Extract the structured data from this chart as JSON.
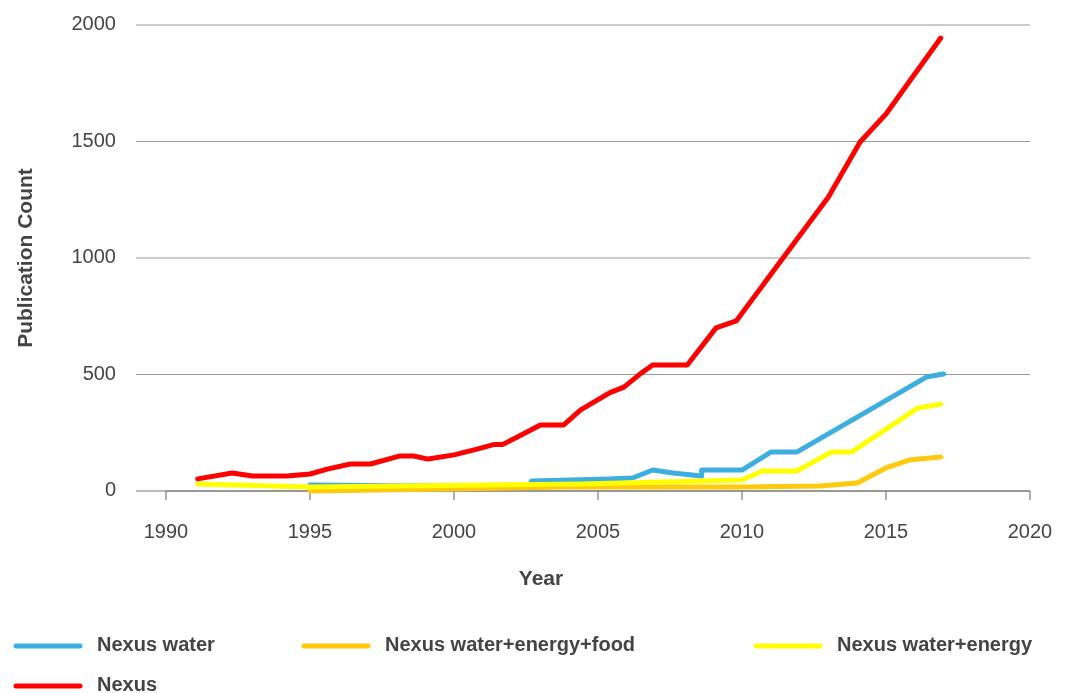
{
  "chart_data": {
    "type": "line",
    "xlabel": "Year",
    "ylabel": "Publication Count",
    "xlim": [
      1990,
      2020
    ],
    "xticks": [
      1990,
      1995,
      2000,
      2005,
      2010,
      2015,
      2020
    ],
    "ylim": [
      0,
      2000
    ],
    "yticks": [
      0,
      500,
      1000,
      1500,
      2000
    ],
    "grid": "y",
    "legend": "bottom",
    "marker": "none",
    "line_style": "solid",
    "series": [
      {
        "name": "Nexus water",
        "color": "#3daee0",
        "x": [
          1995,
          2002.6,
          2002.7,
          2005.4,
          2006.2,
          2006.9,
          2007.6,
          2008.6,
          2008.6,
          2010,
          2011,
          2011.9,
          2016.4,
          2017
        ],
        "values": [
          26,
          18,
          43,
          52,
          56,
          90,
          77,
          64,
          90,
          90,
          167,
          167,
          489,
          502
        ]
      },
      {
        "name": "Nexus water+energy+food",
        "color": "#ffc90e",
        "x": [
          1995,
          2004,
          2010,
          2012.7,
          2014,
          2015,
          2015.8,
          2016.9
        ],
        "values": [
          0,
          17,
          17,
          21,
          34,
          99,
          133,
          146
        ]
      },
      {
        "name": "Nexus water+energy",
        "color": "#ffff00",
        "x": [
          1991.1,
          1995,
          2004.4,
          2010,
          2010.7,
          2011.9,
          2013.1,
          2013.8,
          2016.1,
          2016.9
        ],
        "values": [
          30,
          17,
          30,
          47,
          86,
          86,
          167,
          167,
          356,
          373
        ]
      },
      {
        "name": "Nexus",
        "color": "#ff0000",
        "x": [
          1991.1,
          1992.3,
          1993,
          1994.2,
          1995,
          1995.6,
          1996.4,
          1997.1,
          1998.1,
          1998.6,
          1999.1,
          2000,
          2000.8,
          2001.4,
          2001.7,
          2002.2,
          2003,
          2003.8,
          2004.4,
          2005.4,
          2005.9,
          2006.5,
          2006.9,
          2008.1,
          2009.1,
          2009.8,
          2013,
          2014.1,
          2015,
          2016.9
        ],
        "values": [
          52,
          77,
          64,
          64,
          73,
          94,
          116,
          116,
          150,
          150,
          137,
          155,
          180,
          200,
          200,
          232,
          283,
          283,
          348,
          421,
          446,
          506,
          541,
          541,
          700,
          730,
          1262,
          1498,
          1618,
          1944
        ]
      }
    ]
  }
}
